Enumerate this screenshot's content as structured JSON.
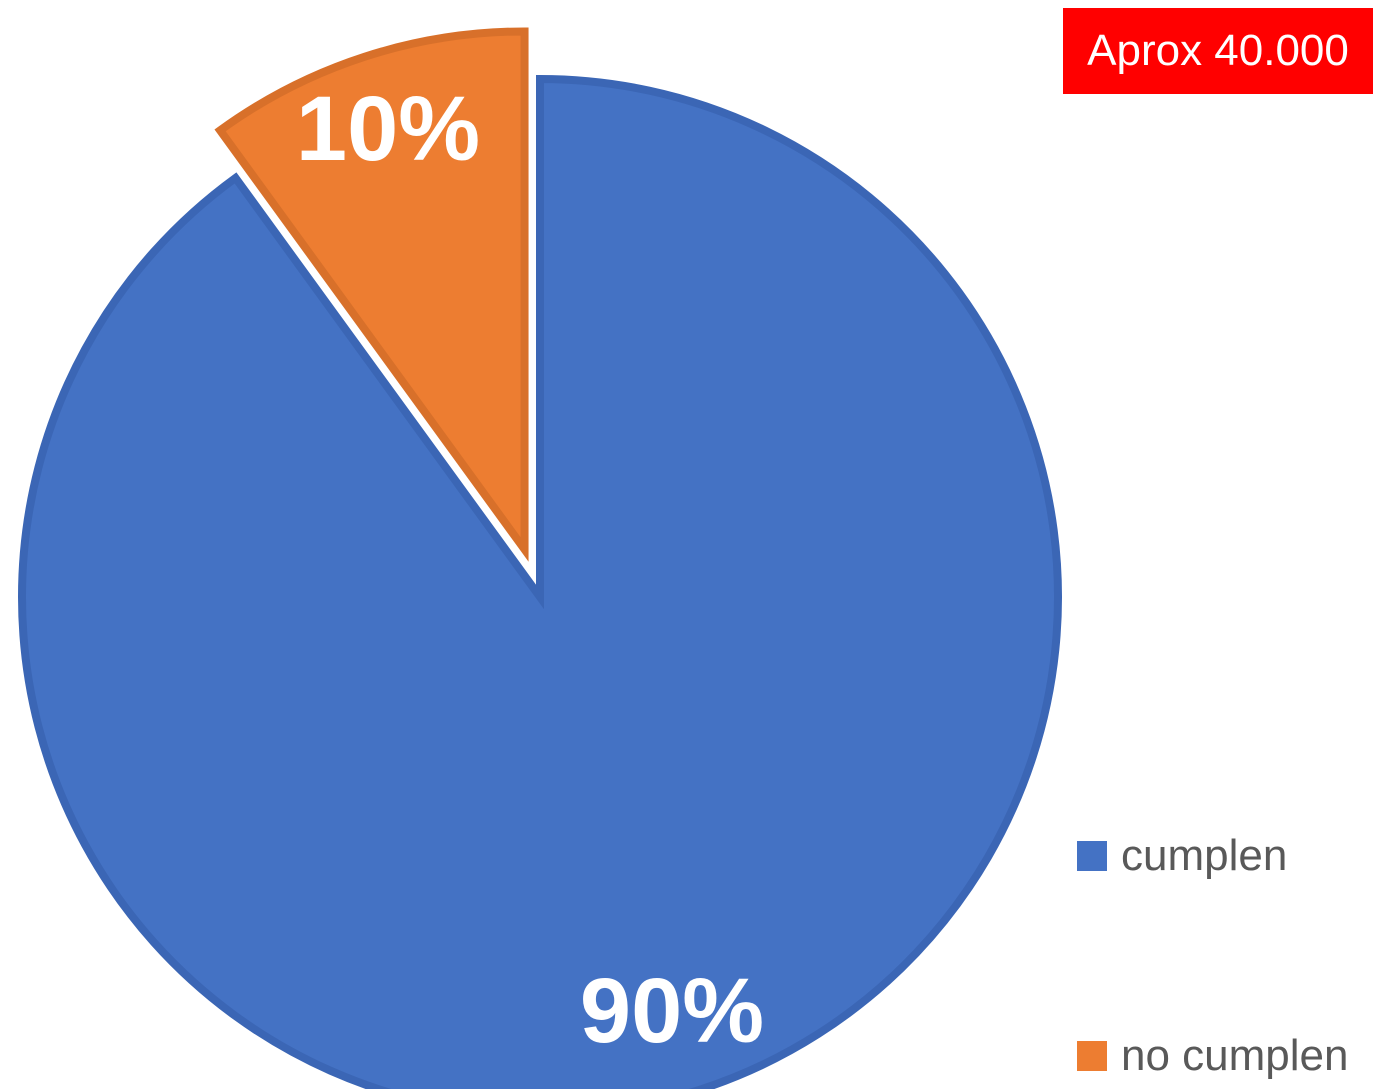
{
  "chart_data": {
    "type": "pie",
    "title": "",
    "categories": [
      "cumplen",
      "no cumplen"
    ],
    "values": [
      90,
      10
    ],
    "data_labels": [
      "90%",
      "10%"
    ],
    "colors": [
      "#4472c4",
      "#ed7d31"
    ],
    "exploded": [
      "no cumplen"
    ],
    "legend_position": "right-bottom"
  },
  "annotation": {
    "text": "Aprox 40.000",
    "color": "#ff0000"
  },
  "legend": {
    "items": [
      {
        "label": "cumplen",
        "color": "#4472c4"
      },
      {
        "label": "no cumplen",
        "color": "#ed7d31"
      }
    ]
  }
}
